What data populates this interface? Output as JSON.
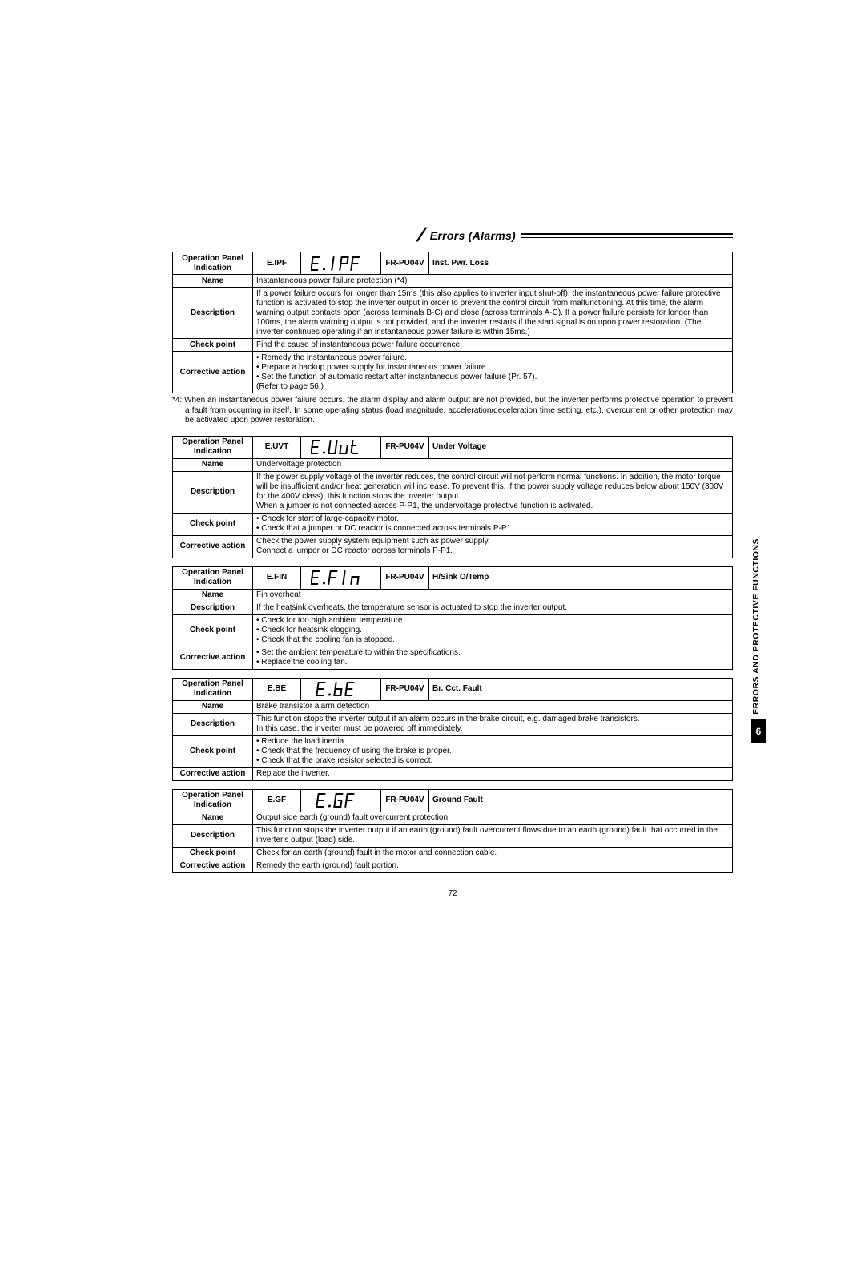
{
  "header": {
    "title": "Errors (Alarms)"
  },
  "side_tab": {
    "label": "ERRORS AND PROTECTIVE FUNCTIONS",
    "number": "6"
  },
  "page_number": "72",
  "row_labels": {
    "op_panel": "Operation Panel Indication",
    "name": "Name",
    "description": "Description",
    "check_point": "Check point",
    "corrective": "Corrective action",
    "fr_pu": "FR-PU04V"
  },
  "footnote": "*4: When an instantaneous power failure occurs, the alarm display and alarm output are not provided, but the inverter performs protective operation to prevent a fault from occurring in itself. In some operating status (load magnitude, acceleration/deceleration time setting, etc.), overcurrent or other protection may be activated upon power restoration.",
  "errors": [
    {
      "code": "E.IPF",
      "seg_glyph": "EIPF",
      "status": "Inst. Pwr. Loss",
      "name": "Instantaneous power failure protection (*4)",
      "description": "If a power failure occurs for longer than 15ms (this also applies to inverter input shut-off), the instantaneous power failure protective function is activated to stop the inverter output in order to prevent the control circuit from malfunctioning. At this time, the alarm warning output contacts open (across terminals B-C) and close (across terminals A-C). If a power failure persists for longer than 100ms, the alarm warning output is not provided, and the inverter restarts if the start signal is on upon power restoration. (The inverter continues operating if an instantaneous power failure is within 15ms.)",
      "check_point": "Find the cause of instantaneous power failure occurrence.",
      "corrective": "• Remedy the instantaneous power failure.\n• Prepare a backup power supply for instantaneous power failure.\n• Set the function of automatic restart after instantaneous power failure (Pr. 57).\n  (Refer to page 56.)"
    },
    {
      "code": "E.UVT",
      "seg_glyph": "EUUT",
      "status": "Under Voltage",
      "name": "Undervoltage protection",
      "description": "If the power supply voltage of the inverter reduces, the control circuit will not perform normal functions. In addition, the motor torque will be insufficient and/or heat generation will increase. To prevent this, if the power supply voltage reduces below about 150V (300V for the 400V class), this function stops the inverter output.\nWhen a jumper is not connected across P-P1, the undervoltage protective function is activated.",
      "check_point": "• Check for start of large-capacity motor.\n• Check that a jumper or DC reactor is connected across terminals P-P1.",
      "corrective": "Check the power supply system equipment such as power supply.\nConnect a jumper or DC reactor across terminals P-P1."
    },
    {
      "code": "E.FIN",
      "seg_glyph": "EFIN",
      "status": "H/Sink O/Temp",
      "name": "Fin overheat",
      "description": "If the heatsink overheats, the temperature sensor is actuated to stop the inverter output.",
      "check_point": "• Check for too high ambient temperature.\n• Check for heatsink clogging.\n• Check that the cooling fan is stopped.",
      "corrective": "• Set the ambient temperature to within the specifications.\n• Replace the cooling fan."
    },
    {
      "code": "E.BE",
      "seg_glyph": "E.BE",
      "status": "Br. Cct. Fault",
      "name": "Brake transistor alarm detection",
      "description": "This function stops the inverter output if an alarm occurs in the brake circuit, e.g. damaged brake transistors.\nIn this case, the inverter must be powered off immediately.",
      "check_point": "• Reduce the load inertia.\n• Check that the frequency of using the brake is proper.\n• Check that the brake resistor selected is correct.",
      "corrective": "Replace the inverter."
    },
    {
      "code": "E.GF",
      "seg_glyph": "E.GF",
      "status": "Ground Fault",
      "name": "Output side earth (ground) fault overcurrent protection",
      "description": "This function stops the inverter output if an earth (ground) fault overcurrent flows due to an earth (ground) fault that occurred in the inverter's output (load) side.",
      "check_point": "Check for an earth (ground) fault in the motor and connection cable.",
      "corrective": "Remedy the earth (ground) fault portion."
    }
  ],
  "styles": {
    "body_font_size": 10,
    "header_font_size": 14,
    "border_color": "#000000",
    "background": "#ffffff"
  }
}
